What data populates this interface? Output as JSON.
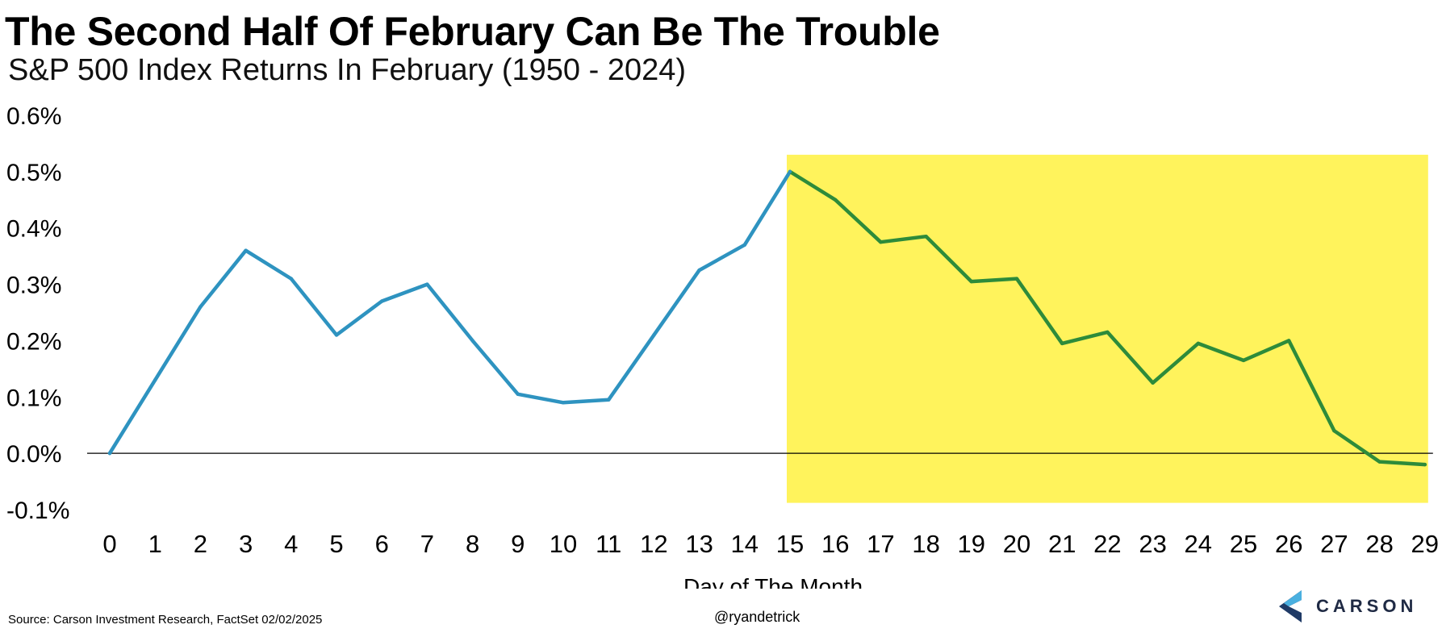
{
  "header": {
    "title": "The Second Half Of February Can Be The Trouble",
    "subtitle": "S&P 500 Index Returns In February (1950 - 2024)"
  },
  "footer": {
    "source": "Source: Carson Investment Research, FactSet 02/02/2025",
    "handle": "@ryandetrick",
    "logo_text": "CARSON"
  },
  "colors": {
    "first_half_line": "#2e93c0",
    "second_half_line": "#2e8b3a",
    "highlight": "#fff35c",
    "logo_dark": "#1f3a66",
    "logo_light": "#4ab0e0"
  },
  "chart_data": {
    "type": "line",
    "title": "The Second Half Of February Can Be The Trouble",
    "subtitle": "S&P 500 Index Returns In February (1950 - 2024)",
    "xlabel": "Day of The Month",
    "ylabel": "",
    "x": [
      0,
      1,
      2,
      3,
      4,
      5,
      6,
      7,
      8,
      9,
      10,
      11,
      12,
      13,
      14,
      15,
      16,
      17,
      18,
      19,
      20,
      21,
      22,
      23,
      24,
      25,
      26,
      27,
      28,
      29
    ],
    "x_tick_labels": [
      "0",
      "1",
      "2",
      "3",
      "4",
      "5",
      "6",
      "7",
      "8",
      "9",
      "10",
      "11",
      "12",
      "13",
      "14",
      "15",
      "16",
      "17",
      "18",
      "19",
      "20",
      "21",
      "22",
      "23",
      "24",
      "25",
      "26",
      "27",
      "28",
      "29"
    ],
    "series": [
      {
        "values": [
          0.0,
          0.13,
          0.26,
          0.36,
          0.31,
          0.21,
          0.27,
          0.3,
          0.2,
          0.105,
          0.09,
          0.095,
          0.21,
          0.325,
          0.37,
          0.5,
          0.45,
          0.375,
          0.385,
          0.305,
          0.31,
          0.195,
          0.215,
          0.125,
          0.195,
          0.165,
          0.2,
          0.04,
          -0.015,
          -0.02
        ]
      }
    ],
    "first_half_end_day": 15,
    "highlight_range_days": [
      15,
      29
    ],
    "ylim": [
      -0.1,
      0.6
    ],
    "y_ticks": [
      0.6,
      0.5,
      0.4,
      0.3,
      0.2,
      0.1,
      0.0,
      -0.1
    ],
    "y_tick_labels": [
      "0.6%",
      "0.5%",
      "0.4%",
      "0.3%",
      "0.2%",
      "0.1%",
      "0.0%",
      "-0.1%"
    ],
    "zero_line": true,
    "grid": false,
    "legend": "none"
  }
}
